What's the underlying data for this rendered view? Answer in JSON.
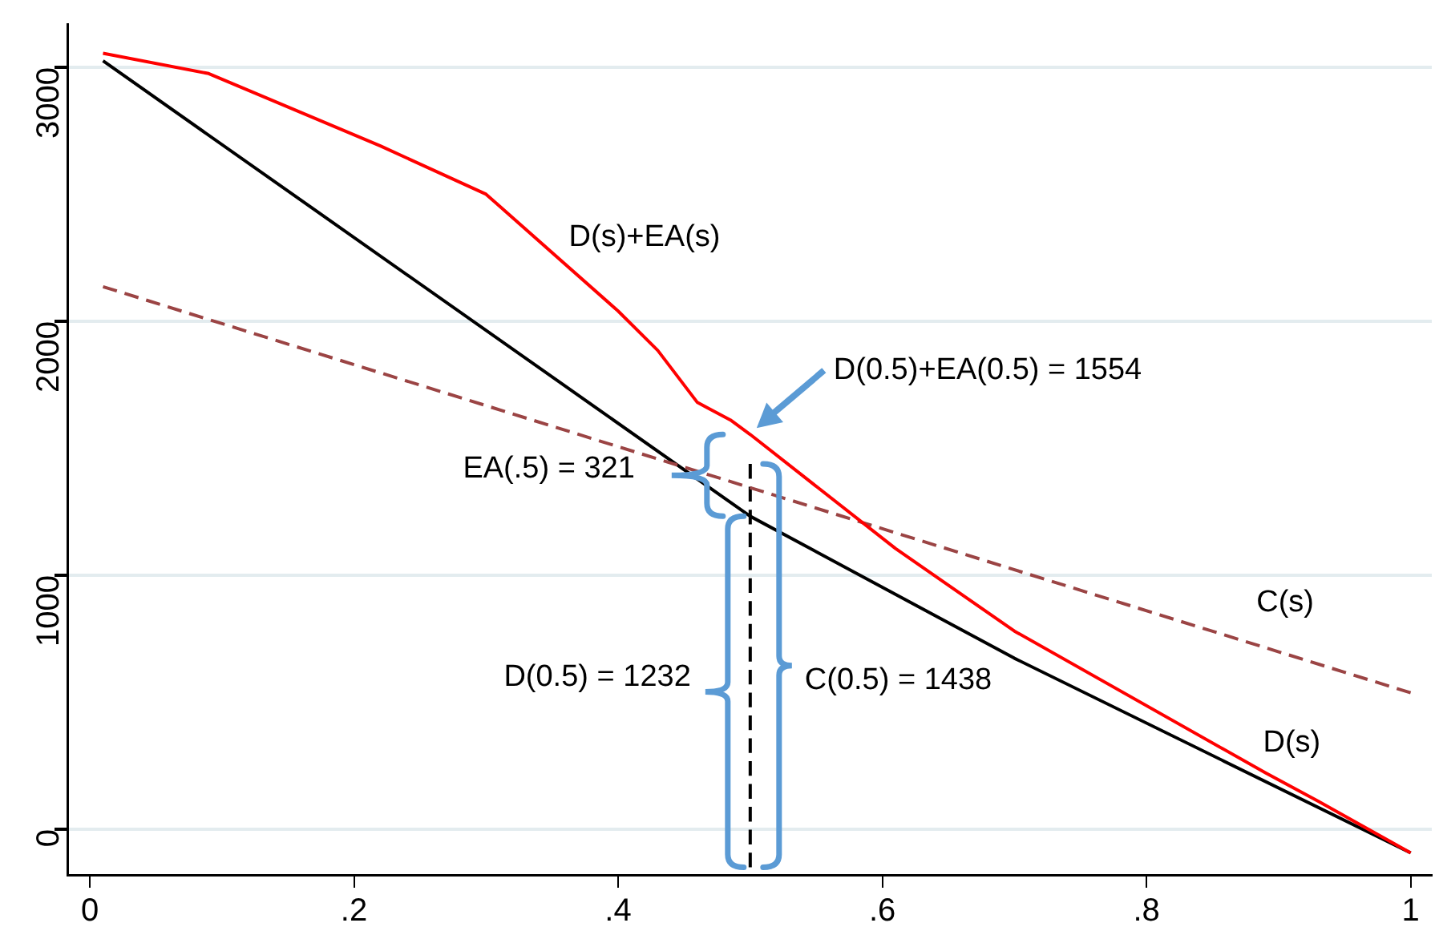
{
  "chart_data": {
    "type": "line",
    "series": [
      {
        "name": "D(s)+EA(s)",
        "color": "#ff0000",
        "x": [
          0.01,
          0.09,
          0.22,
          0.3,
          0.4,
          0.43,
          0.46,
          0.485,
          0.5,
          0.61,
          0.7,
          0.89,
          0.93,
          1
        ],
        "values": [
          3055,
          2975,
          2690,
          2500,
          2040,
          1885,
          1680,
          1611,
          1554,
          1105,
          780,
          222,
          110,
          -93
        ]
      },
      {
        "name": "C(s)",
        "color": "#9b4444",
        "line_style": "dashed",
        "x": [
          0.01,
          1
        ],
        "values": [
          2136,
          537
        ]
      },
      {
        "name": "D(s)",
        "color": "#000000",
        "x": [
          0.01,
          0.5,
          0.7,
          1
        ],
        "values": [
          3025,
          1232,
          673,
          -93
        ]
      },
      {
        "color": "#000000",
        "line_style": "dashed",
        "x": [
          0.5,
          0.5
        ],
        "values": [
          -150,
          1438
        ]
      }
    ],
    "xlim": [
      -0.017,
      1.016
    ],
    "xticks": [
      0,
      {
        "value": 0.2,
        "label": ".2"
      },
      {
        "value": 0.4,
        "label": ".4"
      },
      {
        "value": 0.6,
        "label": ".6"
      },
      {
        "value": 0.8,
        "label": ".8"
      },
      1
    ],
    "ylim": [
      -180,
      3170
    ],
    "yticks": [
      0,
      1000,
      2000,
      3000
    ],
    "grid": "y",
    "legend": false,
    "annotations": [
      "D(0.5)+EA(0.5) = 1554",
      "EA(.5) = 321",
      "D(0.5) = 1232",
      "C(0.5) = 1438"
    ]
  }
}
